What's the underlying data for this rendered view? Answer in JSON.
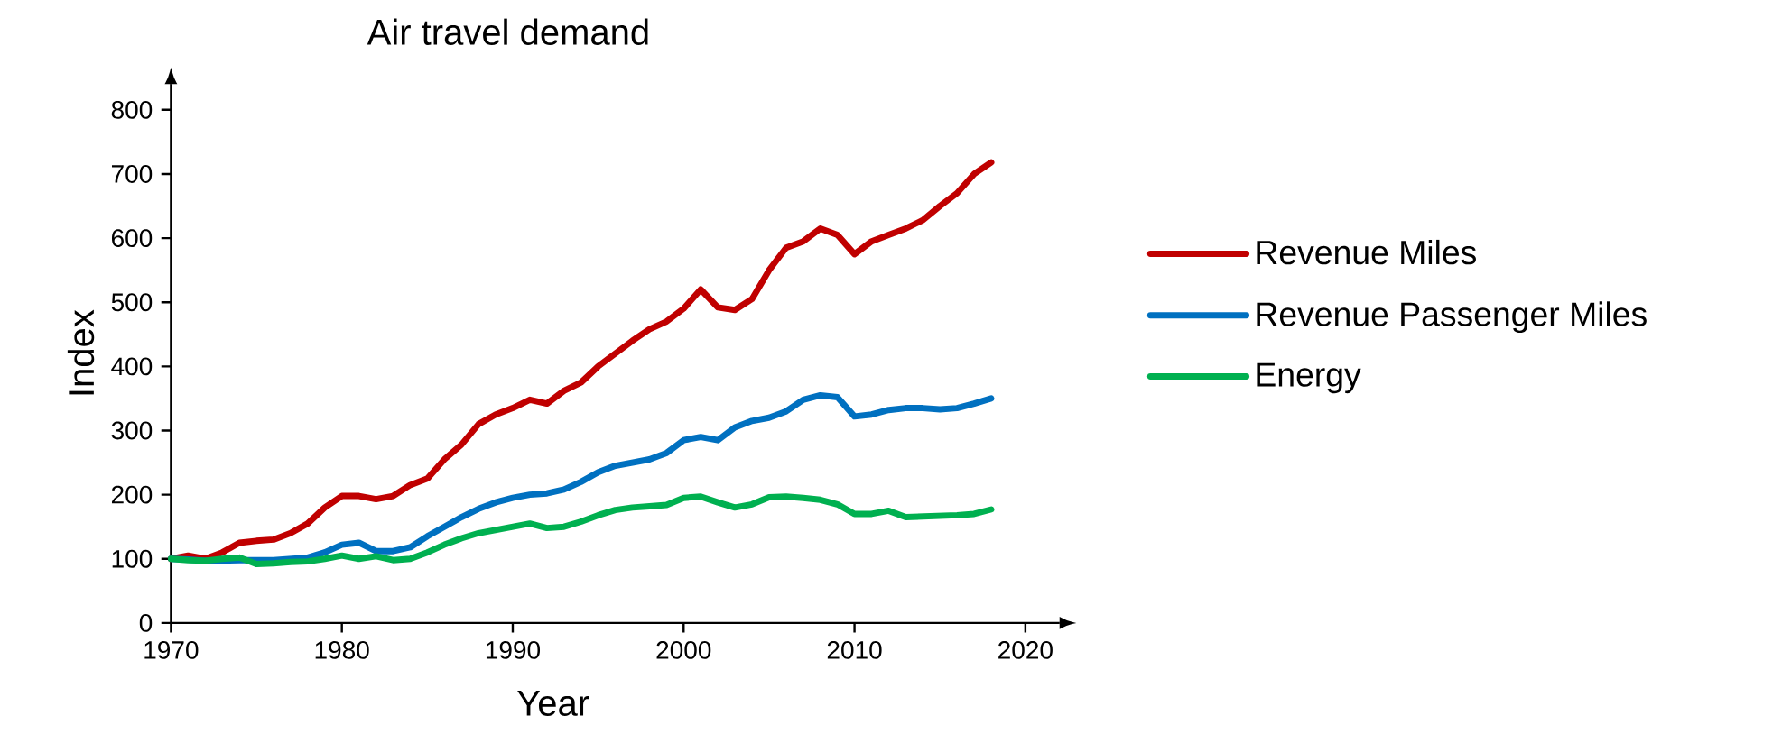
{
  "chart_data": {
    "type": "line",
    "title": "Air travel demand",
    "xlabel": "Year",
    "ylabel": "Index",
    "x": [
      1970,
      1971,
      1972,
      1973,
      1974,
      1975,
      1976,
      1977,
      1978,
      1979,
      1980,
      1981,
      1982,
      1983,
      1984,
      1985,
      1986,
      1987,
      1988,
      1989,
      1990,
      1991,
      1992,
      1993,
      1994,
      1995,
      1996,
      1997,
      1998,
      1999,
      2000,
      2001,
      2002,
      2003,
      2004,
      2005,
      2006,
      2007,
      2008,
      2009,
      2010,
      2011,
      2012,
      2013,
      2014,
      2015,
      2016,
      2017,
      2018
    ],
    "series": [
      {
        "name": "Revenue Miles",
        "color": "#c00000",
        "values": [
          100,
          105,
          100,
          110,
          125,
          128,
          130,
          140,
          155,
          180,
          198,
          198,
          193,
          198,
          215,
          225,
          255,
          278,
          310,
          325,
          335,
          348,
          342,
          362,
          375,
          400,
          420,
          440,
          458,
          470,
          490,
          520,
          492,
          488,
          505,
          550,
          585,
          595,
          615,
          605,
          575,
          595,
          605,
          615,
          628,
          650,
          670,
          700,
          718
        ]
      },
      {
        "name": "Revenue Passenger Miles",
        "color": "#0070c0",
        "values": [
          100,
          99,
          97,
          97,
          98,
          98,
          98,
          100,
          102,
          110,
          122,
          125,
          112,
          112,
          118,
          135,
          150,
          165,
          178,
          188,
          195,
          200,
          202,
          208,
          220,
          235,
          245,
          250,
          255,
          265,
          285,
          290,
          285,
          305,
          315,
          320,
          330,
          348,
          355,
          352,
          322,
          325,
          332,
          335,
          335,
          333,
          335,
          342,
          350
        ]
      },
      {
        "name": "Energy",
        "color": "#00b050",
        "values": [
          100,
          98,
          97,
          100,
          102,
          92,
          93,
          95,
          96,
          100,
          105,
          100,
          104,
          98,
          100,
          110,
          122,
          132,
          140,
          145,
          150,
          155,
          148,
          150,
          158,
          168,
          176,
          180,
          182,
          184,
          195,
          197,
          188,
          180,
          185,
          196,
          197,
          195,
          192,
          185,
          170,
          170,
          175,
          165,
          166,
          167,
          168,
          170,
          177
        ]
      }
    ],
    "xlim": [
      1970,
      2022
    ],
    "ylim": [
      0,
      840
    ],
    "xticks": [
      1970,
      1980,
      1990,
      2000,
      2010,
      2020
    ],
    "yticks": [
      0,
      100,
      200,
      300,
      400,
      500,
      600,
      700,
      800
    ],
    "legend": "right"
  }
}
